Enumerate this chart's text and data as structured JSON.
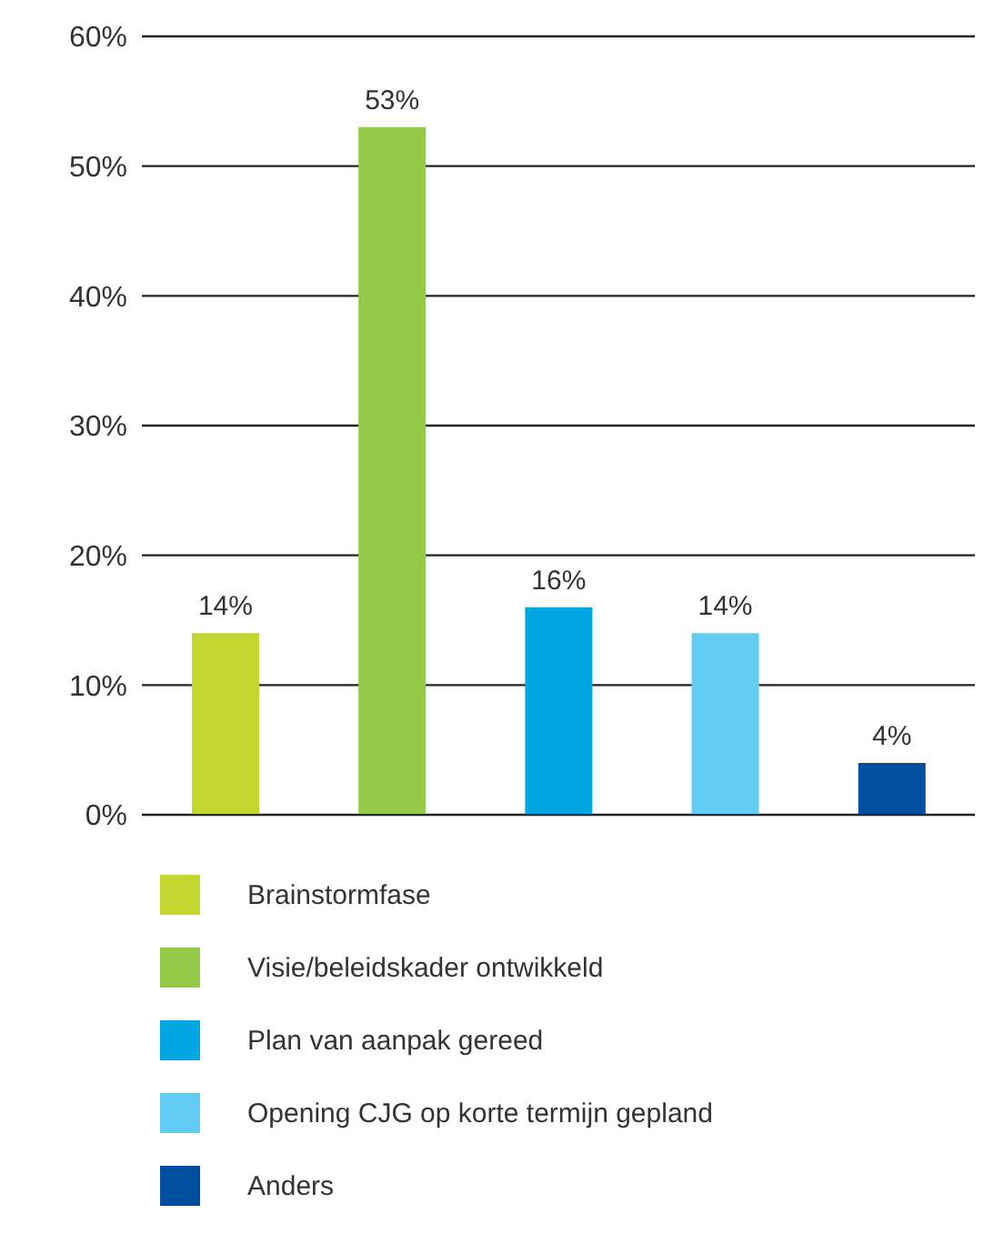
{
  "chart_data": {
    "type": "bar",
    "categories": [
      null,
      null,
      null,
      null,
      null
    ],
    "series": [
      {
        "name": "Brainstormfase",
        "color": "#c3d62f",
        "values": [
          14,
          null,
          null,
          null,
          null
        ],
        "value_labels": [
          "14%",
          null,
          null,
          null,
          null
        ]
      },
      {
        "name": "Visie/beleidskader ontwikkeld",
        "color": "#95c948",
        "values": [
          null,
          53,
          null,
          null,
          null
        ],
        "value_labels": [
          null,
          "53%",
          null,
          null,
          null
        ]
      },
      {
        "name": "Plan van aanpak gereed",
        "color": "#00a6e2",
        "values": [
          null,
          null,
          16,
          null,
          null
        ],
        "value_labels": [
          null,
          null,
          "16%",
          null,
          null
        ]
      },
      {
        "name": "Opening CJG op korte termijn gepland",
        "color": "#62ccf2",
        "values": [
          null,
          null,
          null,
          14,
          null
        ],
        "value_labels": [
          null,
          null,
          null,
          "14%",
          null
        ]
      },
      {
        "name": "Anders",
        "color": "#004f9e",
        "values": [
          null,
          null,
          null,
          null,
          4
        ],
        "value_labels": [
          null,
          null,
          null,
          null,
          "4%"
        ]
      }
    ],
    "ylim": [
      0,
      60
    ],
    "yticks": [
      {
        "value": 0,
        "label": "0%"
      },
      {
        "value": 10,
        "label": "10%"
      },
      {
        "value": 20,
        "label": "20%"
      },
      {
        "value": 30,
        "label": "30%"
      },
      {
        "value": 40,
        "label": "40%"
      },
      {
        "value": 50,
        "label": "50%"
      },
      {
        "value": 60,
        "label": "60%"
      }
    ],
    "grid": "y",
    "legend": "bottom"
  }
}
